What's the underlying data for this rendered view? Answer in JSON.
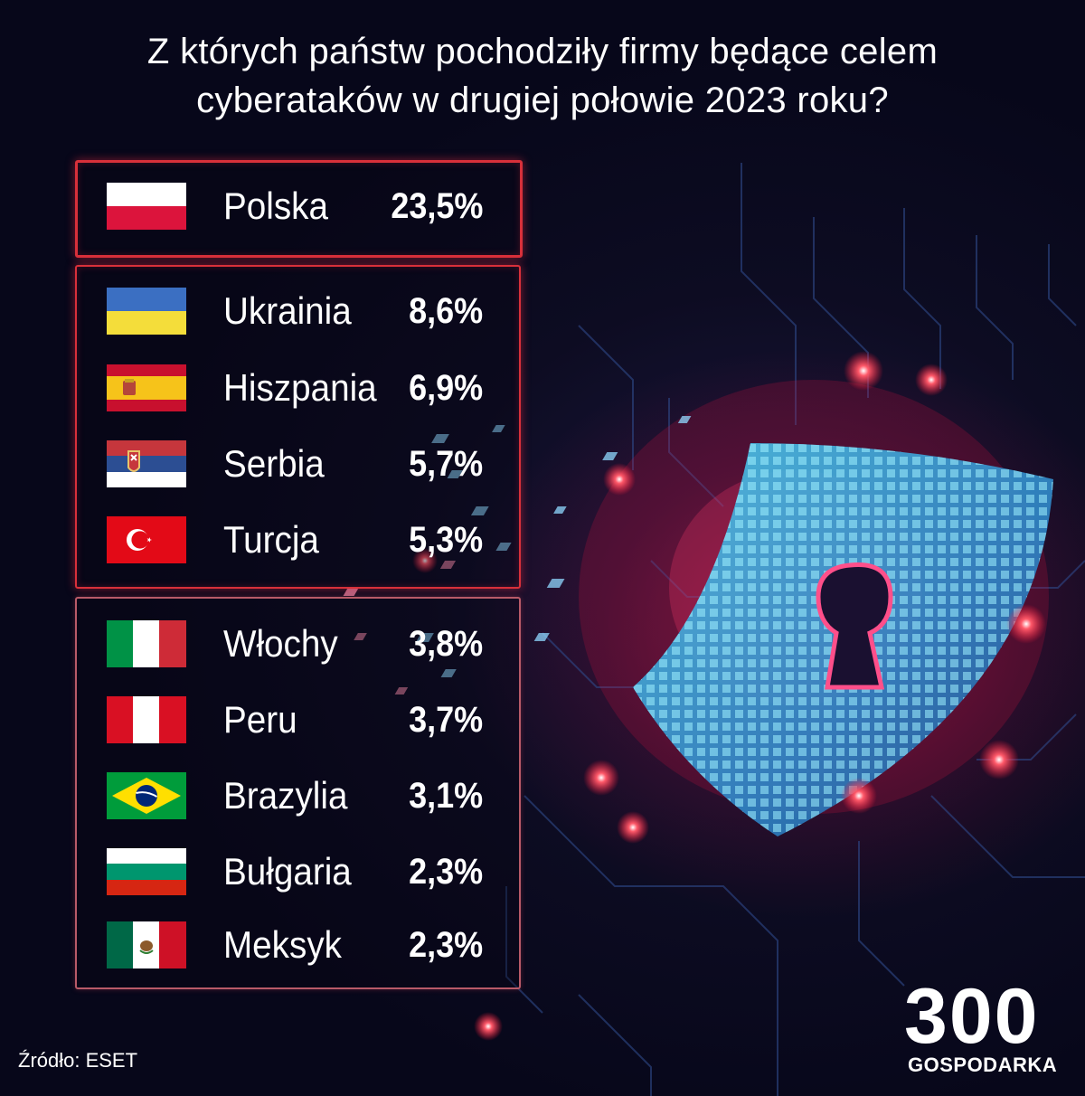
{
  "title_line1": "Z których państw pochodziły firmy będące celem",
  "title_line2": "cyberataków w drugiej połowie 2023 roku?",
  "chart_data": {
    "type": "table",
    "title": "Z których państw pochodziły firmy będące celem cyberataków w drugiej połowie 2023 roku?",
    "groups": [
      {
        "rows": [
          {
            "country": "Polska",
            "value": "23,5%",
            "flag": "poland-flag"
          }
        ]
      },
      {
        "rows": [
          {
            "country": "Ukrainia",
            "value": "8,6%",
            "flag": "ukraine-flag"
          },
          {
            "country": "Hiszpania",
            "value": "6,9%",
            "flag": "spain-flag"
          },
          {
            "country": "Serbia",
            "value": "5,7%",
            "flag": "serbia-flag"
          },
          {
            "country": "Turcja",
            "value": "5,3%",
            "flag": "turkey-flag"
          }
        ]
      },
      {
        "rows": [
          {
            "country": "Włochy",
            "value": "3,8%",
            "flag": "italy-flag"
          },
          {
            "country": "Peru",
            "value": "3,7%",
            "flag": "peru-flag"
          },
          {
            "country": "Brazylia",
            "value": "3,1%",
            "flag": "brazil-flag"
          },
          {
            "country": "Bułgaria",
            "value": "2,3%",
            "flag": "bulgaria-flag"
          },
          {
            "country": "Meksyk",
            "value": "2,3%",
            "flag": "mexico-flag"
          }
        ]
      }
    ]
  },
  "source": "Źródło: ESET",
  "logo": {
    "number": "300",
    "label": "GOSPODARKA"
  },
  "colors": {
    "frame": "#d8303a",
    "background": "#0d0c22",
    "glow": "#be143c",
    "shield": "#3fa7d6"
  }
}
